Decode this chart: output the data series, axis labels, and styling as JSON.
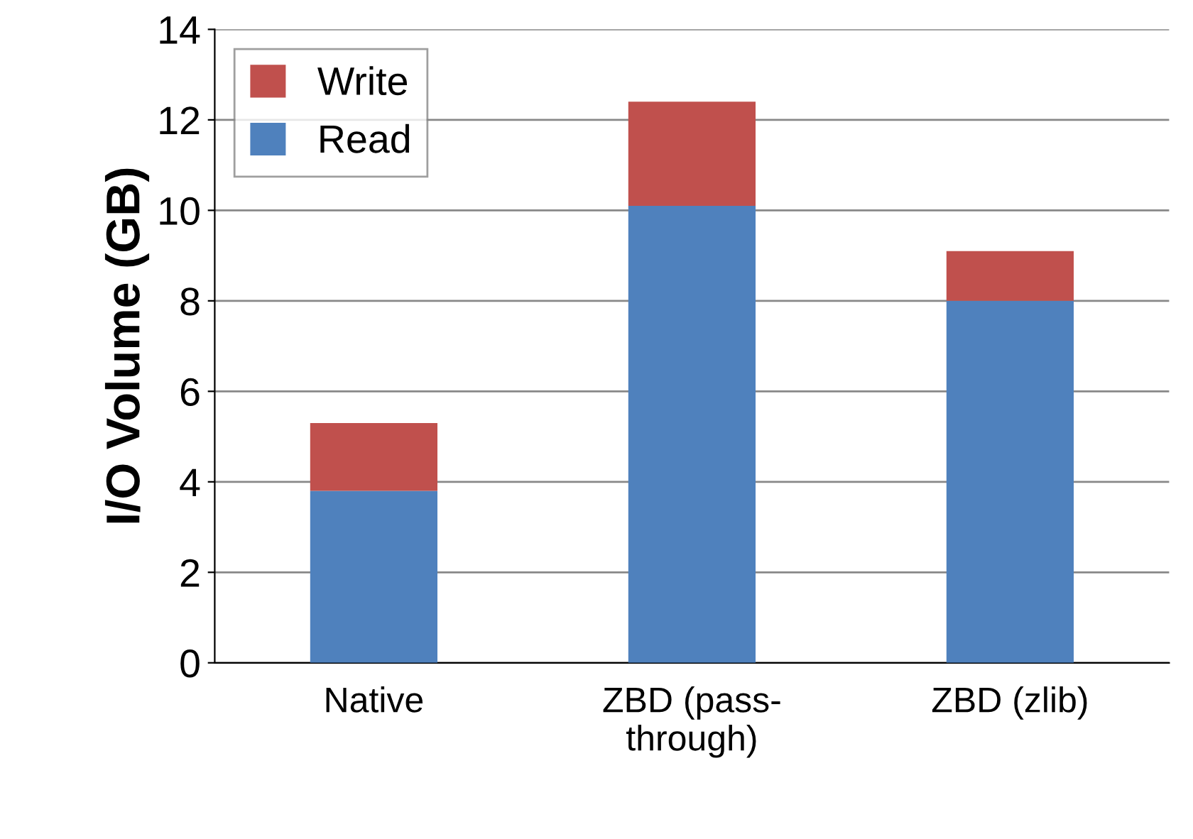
{
  "chart_data": {
    "type": "bar",
    "stacked": true,
    "ylabel": "I/O Volume (GB)",
    "categories": [
      "Native",
      "ZBD (pass-\nthrough)",
      "ZBD (zlib)"
    ],
    "series": [
      {
        "name": "Read",
        "color": "#4f81bd",
        "values": [
          3.8,
          10.1,
          8.0
        ]
      },
      {
        "name": "Write",
        "color": "#c0504d",
        "values": [
          1.5,
          2.3,
          1.1
        ]
      }
    ],
    "ylim": [
      0,
      14
    ],
    "yticks": [
      0,
      2,
      4,
      6,
      8,
      10,
      12,
      14
    ],
    "grid": "y",
    "legend": "top left"
  }
}
